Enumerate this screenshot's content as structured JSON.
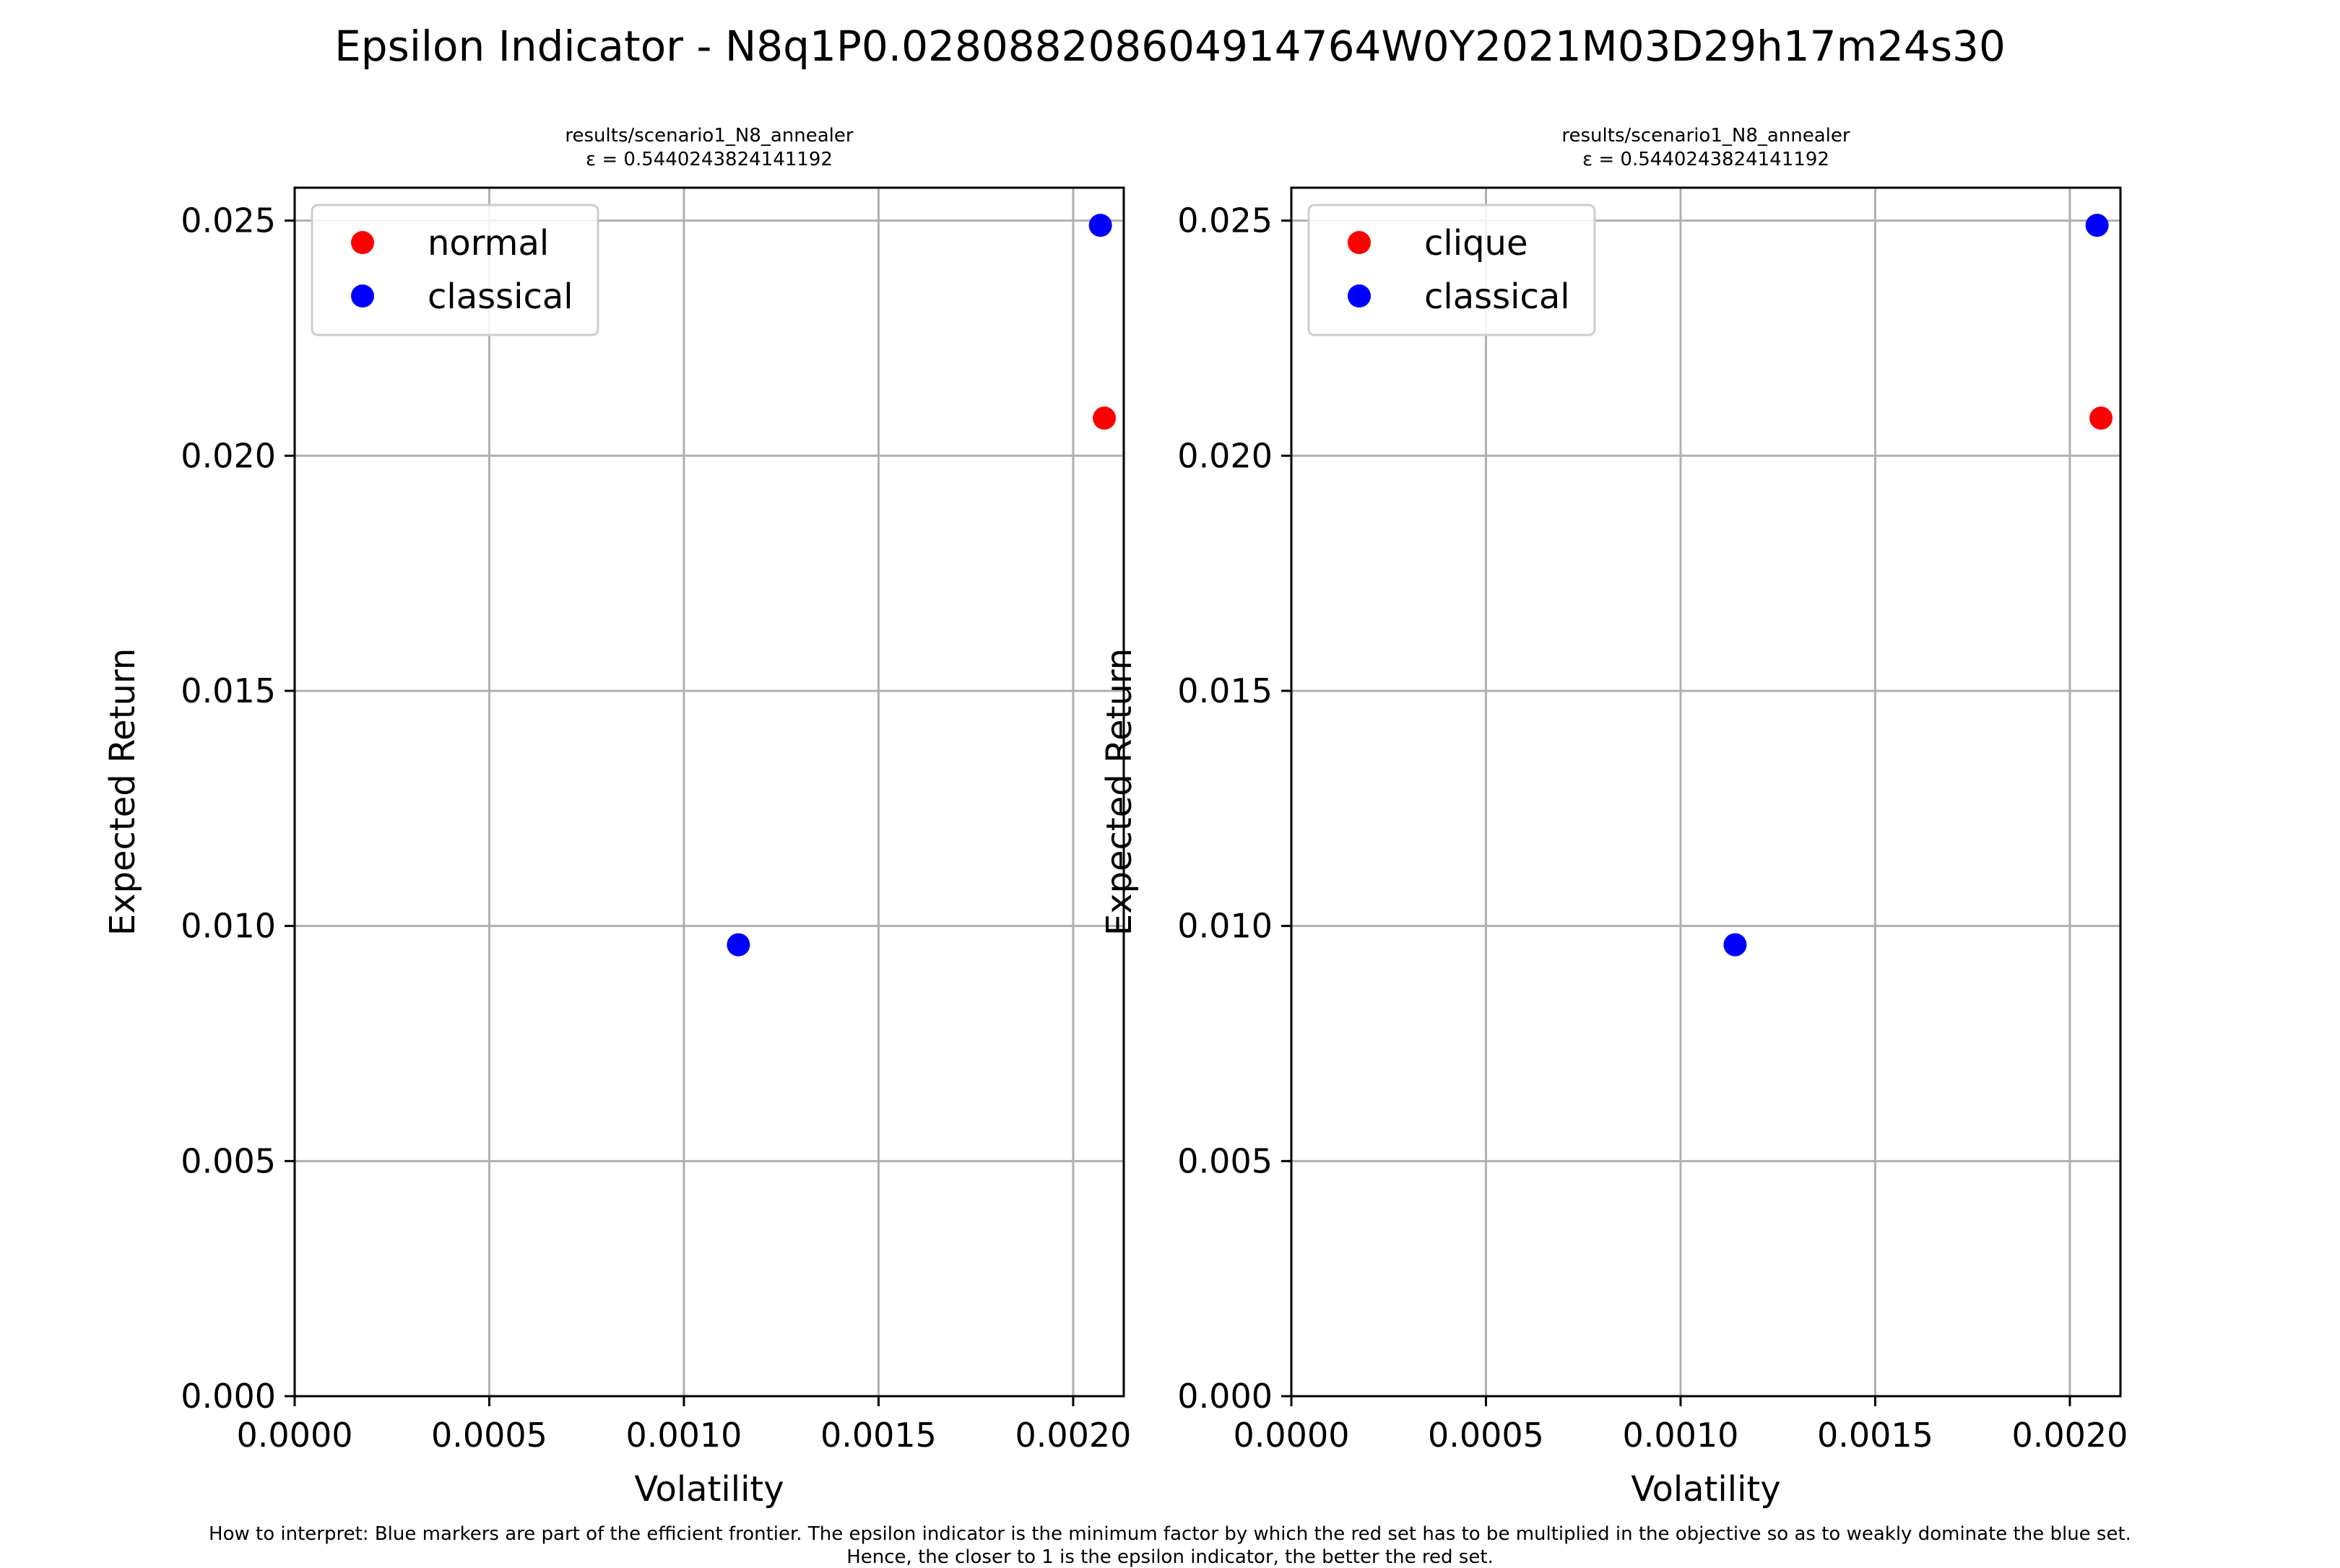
{
  "figure": {
    "title": "Epsilon Indicator - N8q1P0.028088208604914764W0Y2021M03D29h17m24s30",
    "footnote_line1": "How to interpret: Blue markers are part of the efficient frontier. The epsilon indicator is the minimum factor by which the red set has to be multiplied in the objective so as to weakly dominate the blue set.",
    "footnote_line2": "Hence, the closer to 1 is the epsilon indicator, the better the red set."
  },
  "colors": {
    "red_set": "#ff0000",
    "blue_set": "#0000ff",
    "grid": "#b0b0b0"
  },
  "chart_data": [
    {
      "type": "scatter",
      "title_line1": "results/scenario1_N8_annealer",
      "title_line2": "ε = 0.5440243824141192",
      "xlabel": "Volatility",
      "ylabel": "Expected Return",
      "xlim": [
        0.0,
        0.00213
      ],
      "ylim": [
        0.0,
        0.0257
      ],
      "xticks": [
        "0.0000",
        "0.0005",
        "0.0010",
        "0.0015",
        "0.0020"
      ],
      "yticks": [
        "0.000",
        "0.005",
        "0.010",
        "0.015",
        "0.020",
        "0.025"
      ],
      "grid": true,
      "legend_position": "upper-left",
      "series": [
        {
          "name": "normal",
          "color": "#ff0000",
          "points": [
            [
              0.00208,
              0.0208
            ]
          ]
        },
        {
          "name": "classical",
          "color": "#0000ff",
          "points": [
            [
              0.00114,
              0.0096
            ],
            [
              0.00207,
              0.0249
            ]
          ]
        }
      ]
    },
    {
      "type": "scatter",
      "title_line1": "results/scenario1_N8_annealer",
      "title_line2": "ε = 0.5440243824141192",
      "xlabel": "Volatility",
      "ylabel": "Expected Return",
      "xlim": [
        0.0,
        0.00213
      ],
      "ylim": [
        0.0,
        0.0257
      ],
      "xticks": [
        "0.0000",
        "0.0005",
        "0.0010",
        "0.0015",
        "0.0020"
      ],
      "yticks": [
        "0.000",
        "0.005",
        "0.010",
        "0.015",
        "0.020",
        "0.025"
      ],
      "grid": true,
      "legend_position": "upper-left",
      "series": [
        {
          "name": "clique",
          "color": "#ff0000",
          "points": [
            [
              0.00208,
              0.0208
            ]
          ]
        },
        {
          "name": "classical",
          "color": "#0000ff",
          "points": [
            [
              0.00114,
              0.0096
            ],
            [
              0.00207,
              0.0249
            ]
          ]
        }
      ]
    }
  ]
}
